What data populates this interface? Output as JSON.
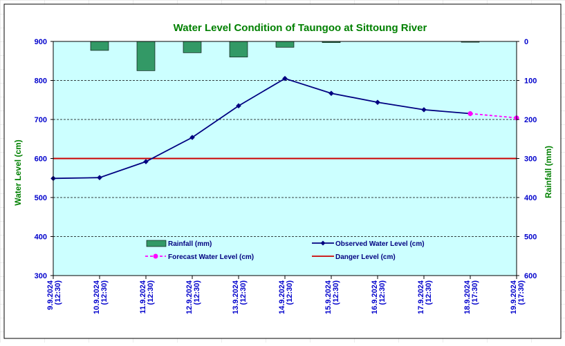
{
  "chart_data": {
    "type": "line+bar",
    "title": "Water Level Condition of Taungoo at  Sittoung River",
    "ylabel_left": "Water Level (cm)",
    "ylabel_right": "Rainfall (mm)",
    "ylim_left": [
      300,
      900
    ],
    "yticks_left": [
      "300",
      "400",
      "500",
      "600",
      "700",
      "800",
      "900"
    ],
    "ylim_right": [
      0,
      600
    ],
    "yticks_right": [
      "0",
      "100",
      "200",
      "300",
      "400",
      "500",
      "600"
    ],
    "right_axis_inverted": true,
    "grid": "horizontal dashed",
    "categories": [
      {
        "date": "9.9.2024",
        "time": "(12:30)"
      },
      {
        "date": "10.9.2024",
        "time": "(12:30)"
      },
      {
        "date": "11.9.2024",
        "time": "(12:30)"
      },
      {
        "date": "12.9.2024",
        "time": "(12:30)"
      },
      {
        "date": "13.9.2024",
        "time": "(12:30)"
      },
      {
        "date": "14.9.2024",
        "time": "(12:30)"
      },
      {
        "date": "15.9.2024",
        "time": "(12:30)"
      },
      {
        "date": "16.9.2024",
        "time": "(12:30)"
      },
      {
        "date": "17.9.2024",
        "time": "(12:30)"
      },
      {
        "date": "18.9.2024",
        "time": "(17:30)"
      },
      {
        "date": "19.9.2024",
        "time": "(17:30)"
      }
    ],
    "series": [
      {
        "name": "Rainfall (mm)",
        "kind": "bar",
        "axis": "right",
        "color": "#339966",
        "values": [
          null,
          23,
          75,
          29,
          40,
          15,
          3,
          null,
          null,
          2,
          null
        ]
      },
      {
        "name": "Observed Water Level (cm)",
        "kind": "line",
        "axis": "left",
        "color": "#000080",
        "marker": "diamond",
        "values": [
          549,
          551,
          592,
          654,
          735,
          805,
          767,
          744,
          725,
          715,
          null
        ]
      },
      {
        "name": "Forecast Water Level (cm)",
        "kind": "line",
        "axis": "left",
        "color": "#ff00ff",
        "marker": "circle",
        "dashed": true,
        "values": [
          null,
          null,
          null,
          null,
          null,
          null,
          null,
          null,
          null,
          715,
          704
        ]
      },
      {
        "name": "Danger Level (cm)",
        "kind": "hline",
        "axis": "left",
        "color": "#cc0000",
        "value": 600
      }
    ],
    "legend": "inside-bottom"
  }
}
